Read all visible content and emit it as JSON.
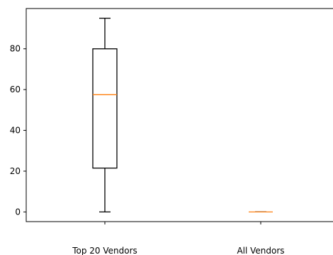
{
  "chart_data": {
    "type": "box",
    "title": "",
    "xlabel": "",
    "ylabel": "",
    "categories": [
      "Top 20 Vendors",
      "All Vendors"
    ],
    "boxes": [
      {
        "category": "Top 20 Vendors",
        "whisker_low": 0,
        "q1": 21.5,
        "median": 57.5,
        "q3": 80,
        "whisker_high": 95
      },
      {
        "category": "All Vendors",
        "whisker_low": 0,
        "q1": 0,
        "median": 0,
        "q3": 0,
        "whisker_high": 0
      }
    ],
    "yticks": [
      0,
      20,
      40,
      60,
      80
    ],
    "ylim": [
      -4.75,
      99.75
    ],
    "grid": false,
    "colors": {
      "box": "#000000",
      "median": "#ff7f0e",
      "axes": "#000000"
    }
  }
}
